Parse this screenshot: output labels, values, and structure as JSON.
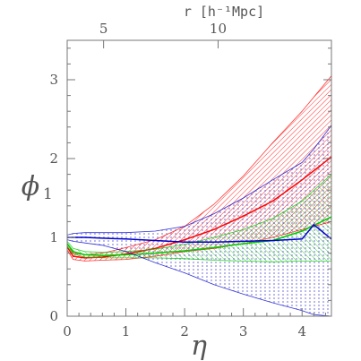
{
  "chart_data": {
    "type": "line",
    "xlabel": "η",
    "ylabel": "ϕ",
    "ylabel_sub": "1",
    "top_axis_label": "r [h⁻¹Mpc]",
    "xlim": [
      0,
      4.5
    ],
    "ylim": [
      0,
      3.5
    ],
    "x_ticks": [
      "0",
      "1",
      "2",
      "3",
      "4"
    ],
    "y_ticks": [
      "0",
      "1",
      "2",
      "3"
    ],
    "top_ticks": [
      {
        "label": "5",
        "eta": 0.62
      },
      {
        "label": "10",
        "eta": 2.57
      }
    ],
    "series": [
      {
        "color": "#ff0000",
        "x": [
          0,
          0.1,
          0.3,
          0.6,
          1.0,
          1.5,
          2.0,
          2.5,
          3.0,
          3.5,
          4.0,
          4.5
        ],
        "y": [
          0.88,
          0.76,
          0.74,
          0.75,
          0.79,
          0.86,
          0.97,
          1.1,
          1.27,
          1.46,
          1.73,
          2.02
        ],
        "upper": [
          0.92,
          0.8,
          0.78,
          0.8,
          0.87,
          0.97,
          1.14,
          1.42,
          1.78,
          2.2,
          2.6,
          3.05
        ],
        "lower": [
          0.84,
          0.72,
          0.7,
          0.71,
          0.72,
          0.76,
          0.82,
          0.86,
          0.92,
          1.0,
          1.1,
          1.2
        ]
      },
      {
        "color": "#00cc00",
        "x": [
          0,
          0.1,
          0.3,
          0.6,
          1.0,
          1.5,
          2.0,
          2.5,
          3.0,
          3.5,
          4.0,
          4.5
        ],
        "y": [
          0.92,
          0.82,
          0.78,
          0.77,
          0.78,
          0.8,
          0.83,
          0.87,
          0.92,
          0.96,
          1.08,
          1.26
        ],
        "upper": [
          0.95,
          0.86,
          0.82,
          0.81,
          0.82,
          0.85,
          0.91,
          1.0,
          1.1,
          1.24,
          1.46,
          1.8
        ],
        "lower": [
          0.89,
          0.79,
          0.75,
          0.74,
          0.74,
          0.74,
          0.73,
          0.71,
          0.7,
          0.69,
          0.7,
          0.7
        ]
      },
      {
        "color": "#0000cc",
        "x": [
          0,
          0.1,
          0.3,
          0.6,
          1.0,
          1.5,
          2.0,
          2.5,
          3.0,
          3.5,
          4.0,
          4.2,
          4.5
        ],
        "y": [
          1.0,
          1.0,
          1.0,
          0.99,
          0.98,
          0.96,
          0.94,
          0.94,
          0.95,
          0.96,
          0.98,
          1.16,
          0.98
        ],
        "upper": [
          1.03,
          1.05,
          1.06,
          1.06,
          1.06,
          1.08,
          1.14,
          1.3,
          1.5,
          1.73,
          1.95,
          2.12,
          2.42
        ],
        "lower": [
          0.97,
          0.95,
          0.93,
          0.9,
          0.82,
          0.68,
          0.55,
          0.4,
          0.28,
          0.17,
          0.07,
          0.02,
          0.0
        ]
      }
    ]
  }
}
